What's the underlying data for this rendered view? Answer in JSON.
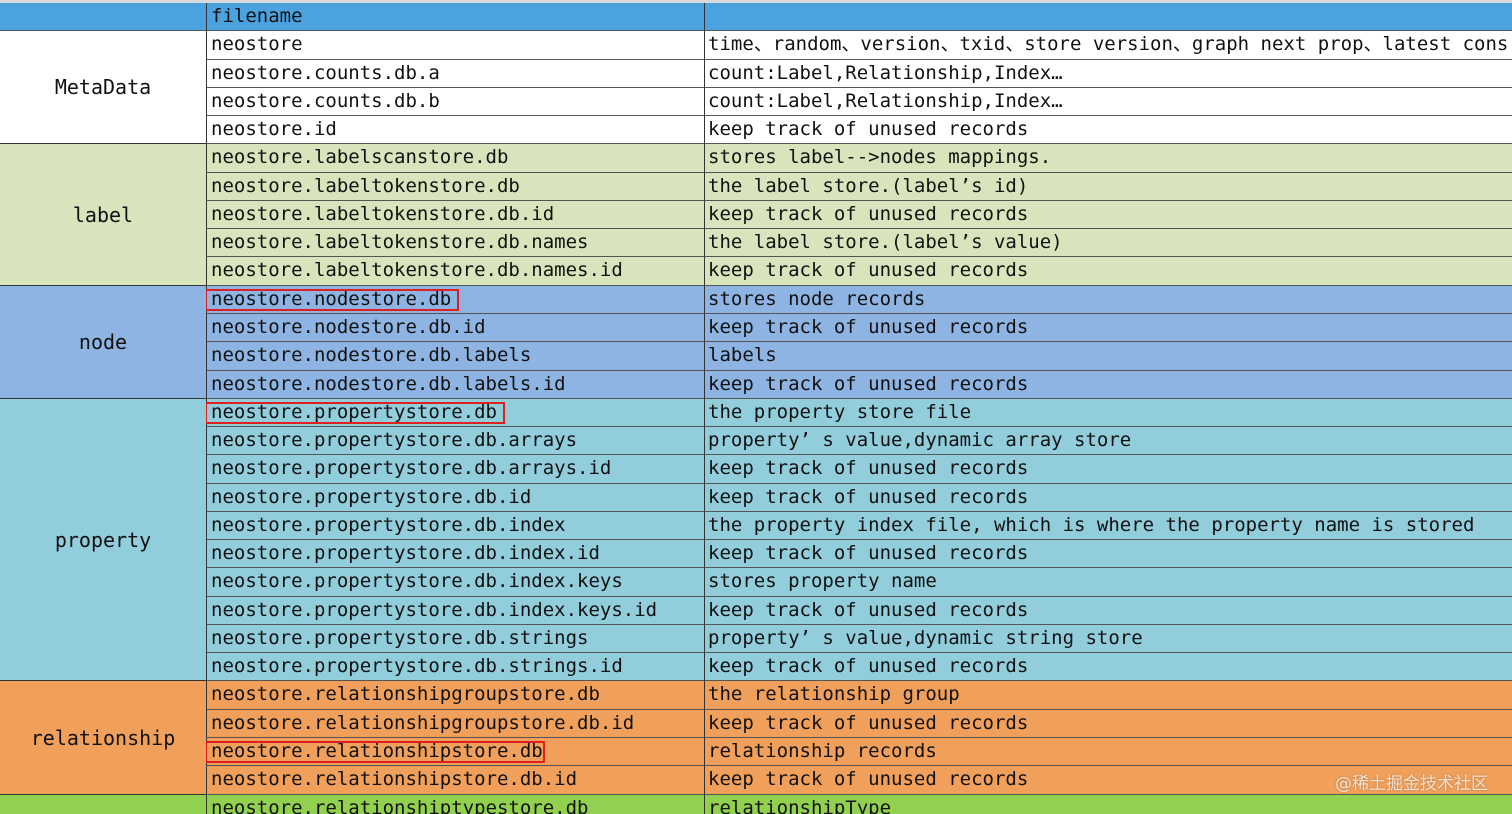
{
  "header": {
    "filename": "filename",
    "description": ""
  },
  "colors": {
    "header": "#4aa3df",
    "MetaData": "#ffffff",
    "label": "#d8e4bc",
    "node": "#8db4e2",
    "property": "#92cddc",
    "relationship": "#f0a05a",
    "relationshiptype": "#92d050",
    "highlight": "#e02020"
  },
  "groups": [
    {
      "name": "MetaData",
      "rows": [
        {
          "file": "neostore",
          "desc": "time、random、version、txid、store version、graph next prop、latest cons"
        },
        {
          "file": "neostore.counts.db.a",
          "desc": "count:Label,Relationship,Index…"
        },
        {
          "file": "neostore.counts.db.b",
          "desc": "count:Label,Relationship,Index…"
        },
        {
          "file": "neostore.id",
          "desc": "keep track of unused records"
        }
      ]
    },
    {
      "name": "label",
      "rows": [
        {
          "file": "neostore.labelscanstore.db",
          "desc": "stores label-->nodes mappings."
        },
        {
          "file": "neostore.labeltokenstore.db",
          "desc": "the label store.(label’s id)"
        },
        {
          "file": "neostore.labeltokenstore.db.id",
          "desc": "keep track of unused records"
        },
        {
          "file": "neostore.labeltokenstore.db.names",
          "desc": "the label store.(label’s value)"
        },
        {
          "file": "neostore.labeltokenstore.db.names.id",
          "desc": "keep track of unused records"
        }
      ]
    },
    {
      "name": "node",
      "rows": [
        {
          "file": "neostore.nodestore.db",
          "desc": "stores node records",
          "highlighted": true
        },
        {
          "file": "neostore.nodestore.db.id",
          "desc": "keep track of unused records"
        },
        {
          "file": "neostore.nodestore.db.labels",
          "desc": "labels"
        },
        {
          "file": "neostore.nodestore.db.labels.id",
          "desc": "keep track of unused records"
        }
      ]
    },
    {
      "name": "property",
      "rows": [
        {
          "file": "neostore.propertystore.db",
          "desc": "the property store file",
          "highlighted": true
        },
        {
          "file": "neostore.propertystore.db.arrays",
          "desc": "property’ s value,dynamic array store"
        },
        {
          "file": "neostore.propertystore.db.arrays.id",
          "desc": "keep track of unused records"
        },
        {
          "file": "neostore.propertystore.db.id",
          "desc": "keep track of unused records"
        },
        {
          "file": "neostore.propertystore.db.index",
          "desc": "the property index file, which is where the property name is stored"
        },
        {
          "file": "neostore.propertystore.db.index.id",
          "desc": "keep track of unused records"
        },
        {
          "file": "neostore.propertystore.db.index.keys",
          "desc": "stores property name"
        },
        {
          "file": "neostore.propertystore.db.index.keys.id",
          "desc": "keep track of unused records"
        },
        {
          "file": "neostore.propertystore.db.strings",
          "desc": "property’ s value,dynamic string store"
        },
        {
          "file": "neostore.propertystore.db.strings.id",
          "desc": "keep track of unused records"
        }
      ]
    },
    {
      "name": "relationship",
      "rows": [
        {
          "file": "neostore.relationshipgroupstore.db",
          "desc": "the relationship group"
        },
        {
          "file": "neostore.relationshipgroupstore.db.id",
          "desc": "keep track of unused records"
        },
        {
          "file": "neostore.relationshipstore.db",
          "desc": "relationship records",
          "highlighted": true
        },
        {
          "file": "neostore.relationshipstore.db.id",
          "desc": "keep track of unused records"
        }
      ]
    },
    {
      "name": "",
      "color_key": "relationshiptype",
      "rows": [
        {
          "file": "neostore.relationshiptypestore.db",
          "desc": "relationshipType"
        }
      ]
    }
  ],
  "watermark": "@稀土掘金技术社区"
}
